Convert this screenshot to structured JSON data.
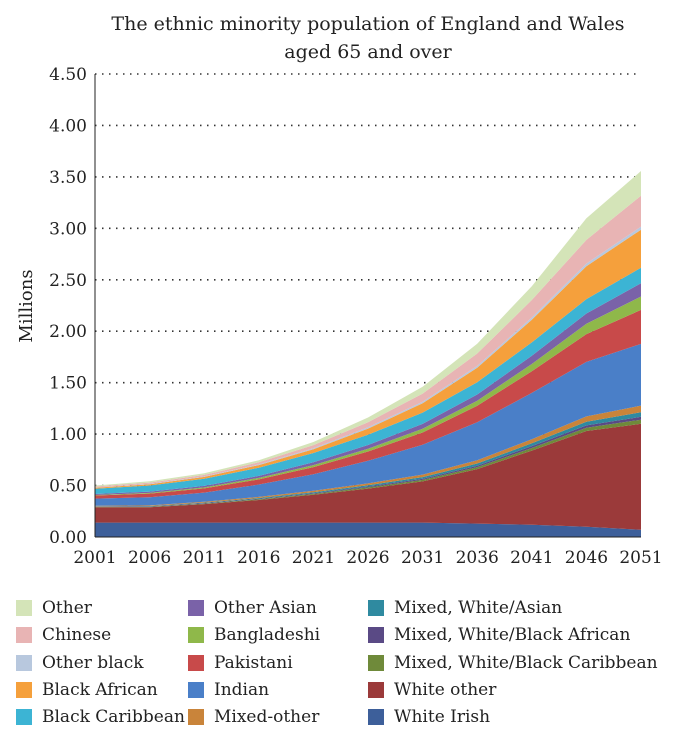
{
  "chart_data": {
    "type": "area",
    "stacked": true,
    "title": "The ethnic minority population of England and Wales",
    "title_line2": "aged 65 and over",
    "ylabel": "Millions",
    "xlabel": "",
    "ylim": [
      0,
      4.5
    ],
    "yticks": [
      "0.00",
      "0.50",
      "1.00",
      "1.50",
      "2.00",
      "2.50",
      "3.00",
      "3.50",
      "4.00",
      "4.50"
    ],
    "x": [
      "2001",
      "2006",
      "2011",
      "2016",
      "2021",
      "2026",
      "2031",
      "2036",
      "2041",
      "2046",
      "2051"
    ],
    "grid": "horizontal-dotted",
    "series": [
      {
        "name": "White Irish",
        "color": "#3d5f9a",
        "values": [
          0.14,
          0.14,
          0.14,
          0.14,
          0.14,
          0.14,
          0.14,
          0.13,
          0.12,
          0.1,
          0.07
        ]
      },
      {
        "name": "White other",
        "color": "#9b3a3a",
        "values": [
          0.15,
          0.15,
          0.18,
          0.22,
          0.27,
          0.33,
          0.4,
          0.53,
          0.72,
          0.93,
          1.03
        ]
      },
      {
        "name": "Mixed, White/Black Caribbean",
        "color": "#6f8a3a",
        "values": [
          0.003,
          0.004,
          0.005,
          0.007,
          0.009,
          0.012,
          0.015,
          0.019,
          0.025,
          0.032,
          0.04
        ]
      },
      {
        "name": "Mixed, White/Black African",
        "color": "#5a4a85",
        "values": [
          0.002,
          0.003,
          0.004,
          0.005,
          0.007,
          0.009,
          0.011,
          0.014,
          0.018,
          0.023,
          0.028
        ]
      },
      {
        "name": "Mixed, White/Asian",
        "color": "#2f8aa0",
        "values": [
          0.003,
          0.004,
          0.005,
          0.007,
          0.009,
          0.012,
          0.016,
          0.021,
          0.028,
          0.036,
          0.045
        ]
      },
      {
        "name": "Mixed-other",
        "color": "#c9843a",
        "values": [
          0.005,
          0.006,
          0.008,
          0.011,
          0.014,
          0.018,
          0.024,
          0.031,
          0.04,
          0.051,
          0.064
        ]
      },
      {
        "name": "Indian",
        "color": "#4a7fc8",
        "values": [
          0.07,
          0.08,
          0.09,
          0.12,
          0.16,
          0.22,
          0.29,
          0.37,
          0.45,
          0.53,
          0.6
        ]
      },
      {
        "name": "Pakistani",
        "color": "#c84a4a",
        "values": [
          0.03,
          0.035,
          0.04,
          0.05,
          0.07,
          0.09,
          0.12,
          0.16,
          0.21,
          0.27,
          0.33
        ]
      },
      {
        "name": "Bangladeshi",
        "color": "#8fb84a",
        "values": [
          0.005,
          0.007,
          0.01,
          0.014,
          0.02,
          0.027,
          0.036,
          0.05,
          0.07,
          0.1,
          0.13
        ]
      },
      {
        "name": "Other Asian",
        "color": "#7a62a8",
        "values": [
          0.01,
          0.012,
          0.015,
          0.02,
          0.027,
          0.036,
          0.047,
          0.06,
          0.08,
          0.1,
          0.13
        ]
      },
      {
        "name": "Black Caribbean",
        "color": "#3cb4d4",
        "values": [
          0.05,
          0.06,
          0.07,
          0.08,
          0.09,
          0.1,
          0.11,
          0.12,
          0.13,
          0.14,
          0.15
        ]
      },
      {
        "name": "Black African",
        "color": "#f5a03c",
        "values": [
          0.01,
          0.012,
          0.017,
          0.025,
          0.037,
          0.06,
          0.09,
          0.14,
          0.22,
          0.32,
          0.37
        ]
      },
      {
        "name": "Other black",
        "color": "#b8c8de",
        "values": [
          0.003,
          0.004,
          0.005,
          0.007,
          0.01,
          0.012,
          0.015,
          0.018,
          0.022,
          0.026,
          0.03
        ]
      },
      {
        "name": "Chinese",
        "color": "#e8b4b4",
        "values": [
          0.01,
          0.012,
          0.015,
          0.02,
          0.03,
          0.05,
          0.08,
          0.12,
          0.17,
          0.23,
          0.3
        ]
      },
      {
        "name": "Other",
        "color": "#d4e4b8",
        "values": [
          0.01,
          0.012,
          0.015,
          0.02,
          0.03,
          0.045,
          0.066,
          0.095,
          0.135,
          0.21,
          0.24
        ]
      }
    ],
    "legend_order": [
      "Other",
      "Other Asian",
      "Mixed, White/Asian",
      "Chinese",
      "Bangladeshi",
      "Mixed, White/Black African",
      "Other black",
      "Pakistani",
      "Mixed, White/Black Caribbean",
      "Black African",
      "Indian",
      "White other",
      "Black Caribbean",
      "Mixed-other",
      "White Irish"
    ],
    "legend_position": "bottom"
  }
}
